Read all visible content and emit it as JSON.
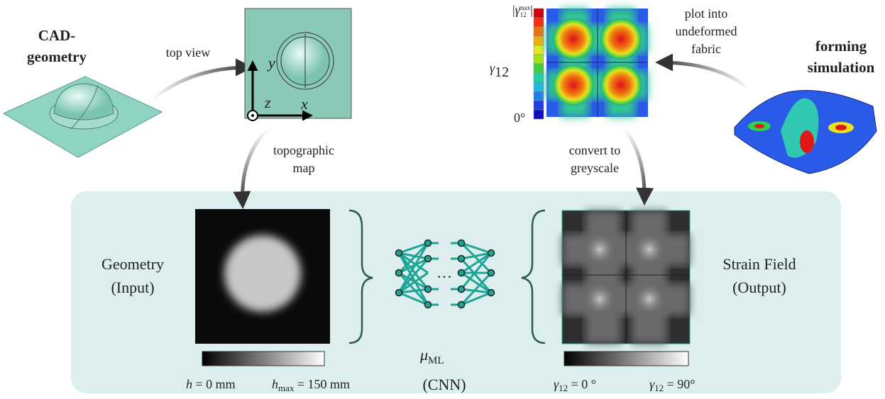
{
  "cad": {
    "lines": [
      "CAD-",
      "geometry"
    ]
  },
  "top_view": {
    "label": "top view",
    "axis_y": "y",
    "axis_z": "z",
    "axis_x": "x"
  },
  "topographic": {
    "lines": [
      "topographic",
      "map"
    ]
  },
  "strain_plot": {
    "scale_top": {
      "open": "|",
      "base": "γ",
      "sub": "12",
      "sup": "max",
      "close": "|"
    },
    "side_label": {
      "base": "γ",
      "sub": "12"
    },
    "scale_bottom": "0°"
  },
  "plot_into": {
    "lines": [
      "plot into",
      "undeformed",
      "fabric"
    ]
  },
  "forming": {
    "lines": [
      "forming",
      "simulation"
    ]
  },
  "convert": {
    "lines": [
      "convert to",
      "greyscale"
    ]
  },
  "input": {
    "lines": [
      "Geometry",
      "(Input)"
    ],
    "scale_min": {
      "var": "h",
      "rest": " = 0 mm"
    },
    "scale_max": {
      "var": "h",
      "sub": "max",
      "rest": " = 150 mm"
    }
  },
  "network": {
    "ellipsis": "…",
    "symbol": {
      "base": "μ",
      "sub": "ML"
    },
    "name": "(CNN)"
  },
  "output": {
    "lines": [
      "Strain Field",
      "(Output)"
    ],
    "scale_min": {
      "var": "γ",
      "sub": "12",
      "rest": " = 0 °"
    },
    "scale_max": {
      "var": "γ",
      "sub": "12",
      "rest": " = 90°"
    }
  }
}
